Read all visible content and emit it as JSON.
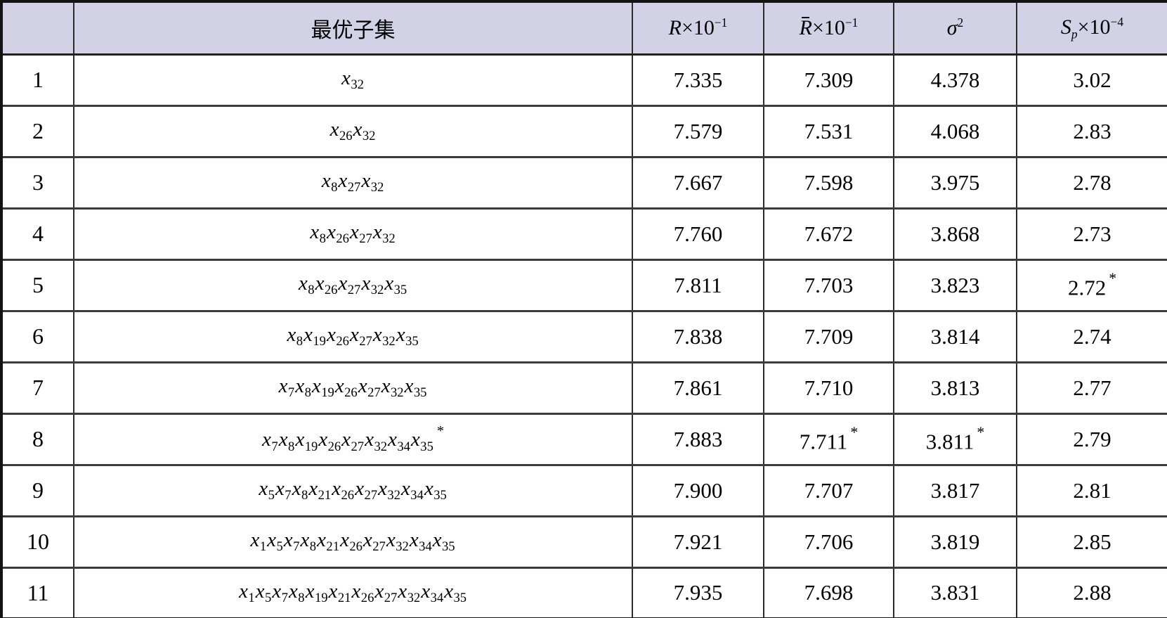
{
  "table": {
    "var_symbol": "x",
    "star_char": "*",
    "colors": {
      "header_bg": "#d3d1e6",
      "body_bg": "#ffffff",
      "border_outer": "#131313",
      "border_inner": "#3b3b3b",
      "text": "#000000"
    },
    "headers": {
      "index": "",
      "subset": "最优子集",
      "r": {
        "sym": "R",
        "times": "×10",
        "exp": "−1"
      },
      "rbar": {
        "sym": "R",
        "barred": true,
        "times": "×10",
        "exp": "−1"
      },
      "sigma": {
        "sym": "σ",
        "exp": "2"
      },
      "sp": {
        "sym": "S",
        "sub": "p",
        "times": "×10",
        "exp": "−4"
      }
    },
    "rows": [
      {
        "no": "1",
        "subset": [
          "32"
        ],
        "r": "7.335",
        "rbar": "7.309",
        "sigma": "4.378",
        "sp": "3.02",
        "stars": []
      },
      {
        "no": "2",
        "subset": [
          "26",
          "32"
        ],
        "r": "7.579",
        "rbar": "7.531",
        "sigma": "4.068",
        "sp": "2.83",
        "stars": []
      },
      {
        "no": "3",
        "subset": [
          "8",
          "27",
          "32"
        ],
        "r": "7.667",
        "rbar": "7.598",
        "sigma": "3.975",
        "sp": "2.78",
        "stars": []
      },
      {
        "no": "4",
        "subset": [
          "8",
          "26",
          "27",
          "32"
        ],
        "r": "7.760",
        "rbar": "7.672",
        "sigma": "3.868",
        "sp": "2.73",
        "stars": []
      },
      {
        "no": "5",
        "subset": [
          "8",
          "26",
          "27",
          "32",
          "35"
        ],
        "r": "7.811",
        "rbar": "7.703",
        "sigma": "3.823",
        "sp": "2.72",
        "stars": [
          "sp"
        ]
      },
      {
        "no": "6",
        "subset": [
          "8",
          "19",
          "26",
          "27",
          "32",
          "35"
        ],
        "r": "7.838",
        "rbar": "7.709",
        "sigma": "3.814",
        "sp": "2.74",
        "stars": []
      },
      {
        "no": "7",
        "subset": [
          "7",
          "8",
          "19",
          "26",
          "27",
          "32",
          "35"
        ],
        "r": "7.861",
        "rbar": "7.710",
        "sigma": "3.813",
        "sp": "2.77",
        "stars": []
      },
      {
        "no": "8",
        "subset": [
          "7",
          "8",
          "19",
          "26",
          "27",
          "32",
          "34",
          "35"
        ],
        "r": "7.883",
        "rbar": "7.711",
        "sigma": "3.811",
        "sp": "2.79",
        "stars": [
          "subset",
          "rbar",
          "sigma"
        ]
      },
      {
        "no": "9",
        "subset": [
          "5",
          "7",
          "8",
          "21",
          "26",
          "27",
          "32",
          "34",
          "35"
        ],
        "r": "7.900",
        "rbar": "7.707",
        "sigma": "3.817",
        "sp": "2.81",
        "stars": []
      },
      {
        "no": "10",
        "subset": [
          "1",
          "5",
          "7",
          "8",
          "21",
          "26",
          "27",
          "32",
          "34",
          "35"
        ],
        "r": "7.921",
        "rbar": "7.706",
        "sigma": "3.819",
        "sp": "2.85",
        "stars": []
      },
      {
        "no": "11",
        "subset": [
          "1",
          "5",
          "7",
          "8",
          "19",
          "21",
          "26",
          "27",
          "32",
          "34",
          "35"
        ],
        "r": "7.935",
        "rbar": "7.698",
        "sigma": "3.831",
        "sp": "2.88",
        "stars": []
      }
    ]
  }
}
